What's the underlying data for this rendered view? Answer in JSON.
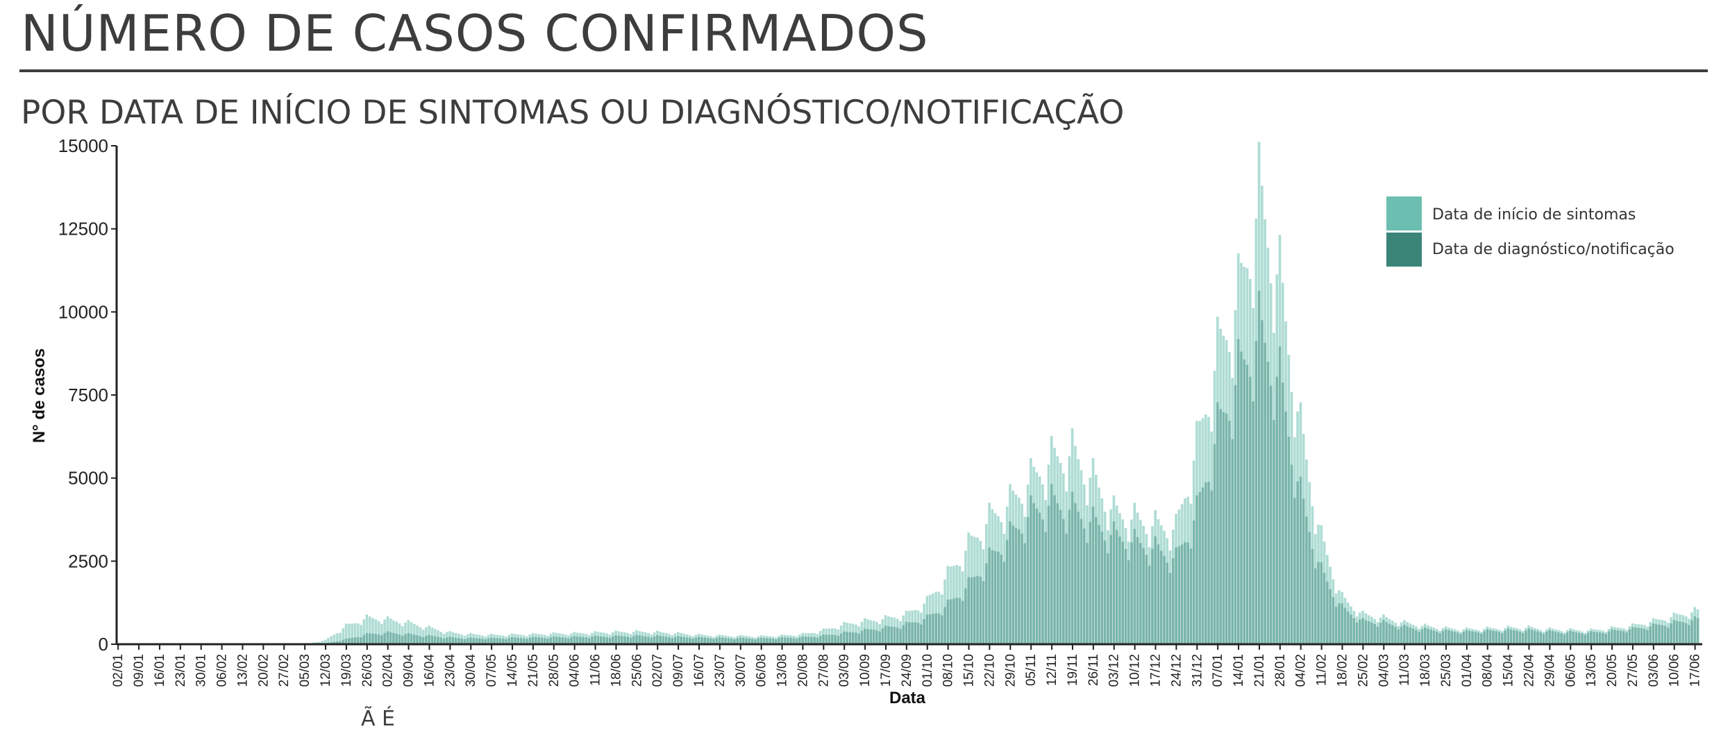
{
  "header": {
    "title": "NÚMERO DE CASOS CONFIRMADOS",
    "subtitle": "POR DATA DE INÍCIO DE SINTOMAS OU DIAGNÓSTICO/NOTIFICAÇÃO"
  },
  "colors": {
    "symptom_onset": "#6cbfb0",
    "diagnosis": "#3a8478",
    "axis": "#222222"
  },
  "chart_data": {
    "type": "bar",
    "xlabel": "Data",
    "ylabel": "N° de casos",
    "ylim": [
      0,
      15000
    ],
    "yticks": [
      0,
      2500,
      5000,
      7500,
      10000,
      12500,
      15000
    ],
    "x_start_date": "2020-01-02",
    "day_count": 534,
    "x_ticks": [
      "02/01",
      "09/01",
      "16/01",
      "23/01",
      "30/01",
      "06/02",
      "13/02",
      "20/02",
      "27/02",
      "05/03",
      "12/03",
      "19/03",
      "26/03",
      "02/04",
      "09/04",
      "16/04",
      "23/04",
      "30/04",
      "07/05",
      "14/05",
      "21/05",
      "28/05",
      "04/06",
      "11/06",
      "18/06",
      "25/06",
      "02/07",
      "09/07",
      "16/07",
      "23/07",
      "30/07",
      "06/08",
      "13/08",
      "20/08",
      "27/08",
      "03/09",
      "10/09",
      "17/09",
      "24/09",
      "01/10",
      "08/10",
      "15/10",
      "22/10",
      "29/10",
      "05/11",
      "12/11",
      "19/11",
      "26/11",
      "03/12",
      "10/12",
      "17/12",
      "24/12",
      "31/12",
      "07/01",
      "14/01",
      "21/01",
      "28/01",
      "04/02",
      "11/02",
      "18/02",
      "25/02",
      "04/03",
      "11/03",
      "18/03",
      "25/03",
      "01/04",
      "08/04",
      "15/04",
      "22/04",
      "29/04",
      "06/05",
      "13/05",
      "20/05",
      "27/05",
      "03/06",
      "10/06",
      "17/06"
    ],
    "legend_position": "top-right",
    "series": [
      {
        "name": "Data de início de sintomas",
        "color": "#6cbfb0",
        "weekly_values": [
          0,
          0,
          0,
          0,
          0,
          0,
          0,
          0,
          0,
          0,
          120,
          550,
          800,
          750,
          650,
          500,
          350,
          300,
          280,
          290,
          300,
          320,
          330,
          350,
          370,
          380,
          360,
          330,
          280,
          260,
          250,
          240,
          260,
          300,
          420,
          600,
          700,
          780,
          900,
          1300,
          2100,
          3000,
          3800,
          4300,
          5000,
          5600,
          5800,
          5000,
          4000,
          3800,
          3600,
          3500,
          6000,
          8800,
          10500,
          13500,
          11000,
          6500,
          3200,
          1400,
          900,
          800,
          650,
          550,
          480,
          450,
          470,
          500,
          500,
          450,
          430,
          420,
          480,
          560,
          700,
          850,
          1000
        ]
      },
      {
        "name": "Data de diagnóstico/notificação",
        "color": "#3a8478",
        "weekly_values": [
          0,
          0,
          0,
          0,
          0,
          0,
          0,
          0,
          0,
          0,
          20,
          150,
          300,
          350,
          300,
          250,
          200,
          180,
          180,
          190,
          200,
          210,
          220,
          230,
          240,
          250,
          240,
          220,
          200,
          190,
          180,
          175,
          190,
          210,
          260,
          340,
          420,
          500,
          600,
          800,
          1200,
          1800,
          2600,
          3300,
          4000,
          4300,
          4100,
          3700,
          3300,
          3100,
          2900,
          2600,
          4000,
          6500,
          8200,
          9500,
          8000,
          4500,
          2200,
          1100,
          700,
          650,
          520,
          450,
          400,
          380,
          400,
          420,
          420,
          380,
          360,
          350,
          400,
          460,
          560,
          650,
          750
        ]
      }
    ]
  },
  "footer": {
    "cut_caption": "Ã É"
  }
}
